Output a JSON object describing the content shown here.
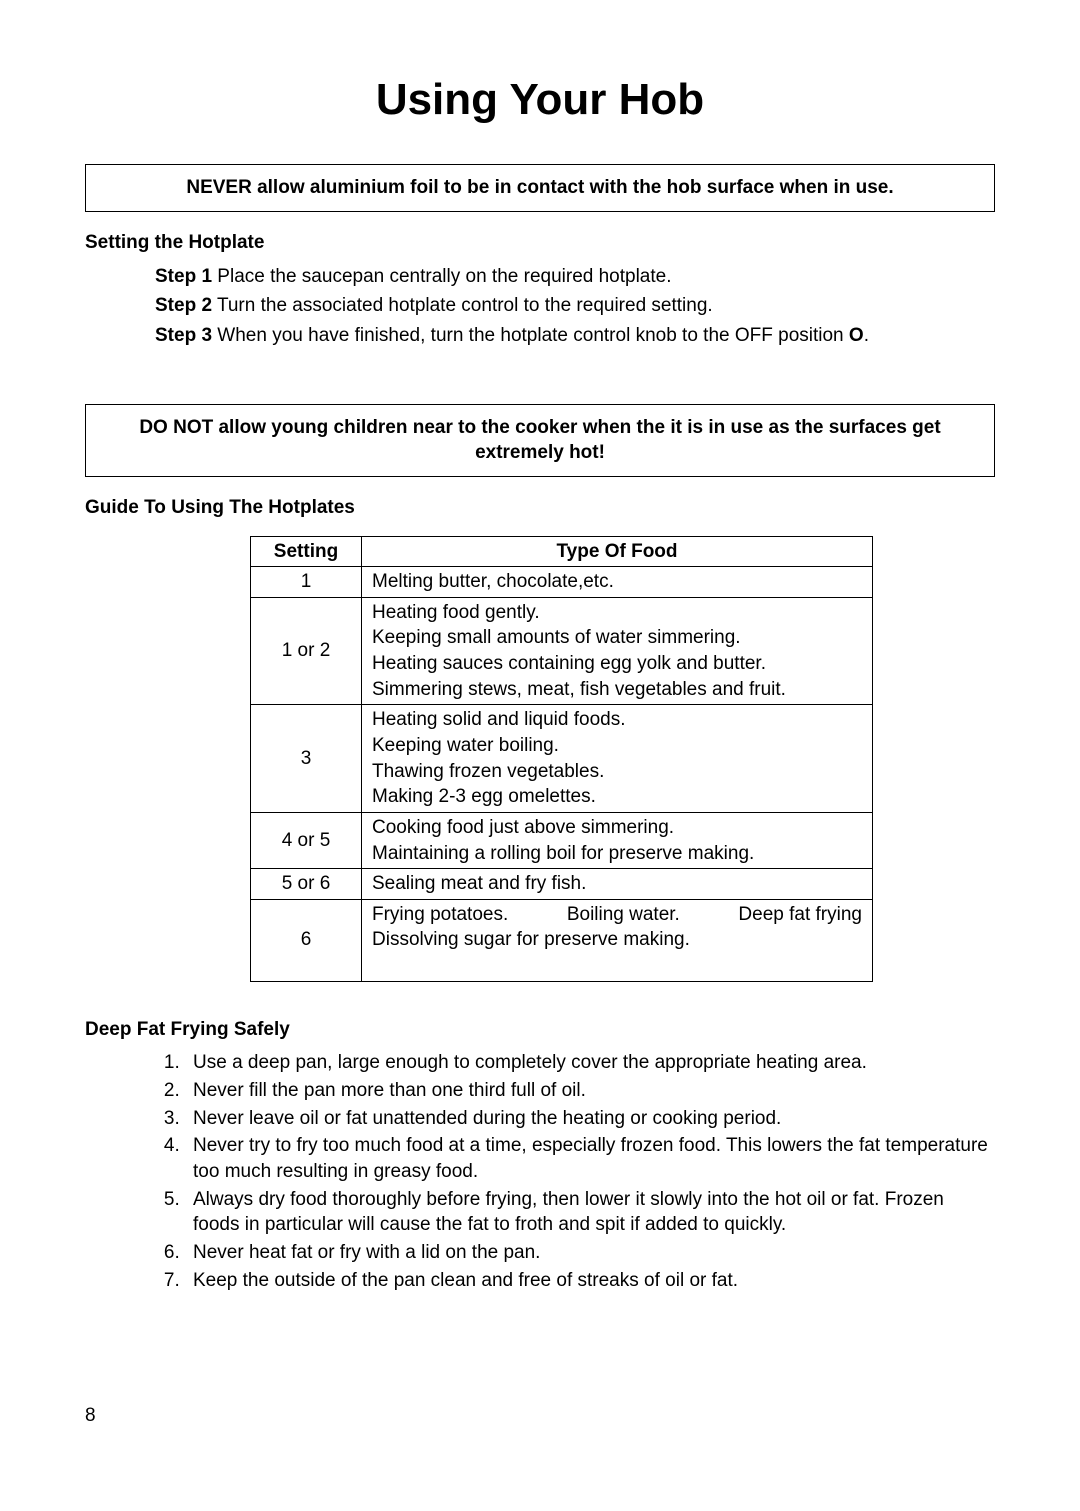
{
  "page": {
    "title": "Using Your Hob",
    "number": "8"
  },
  "warnings": {
    "foil": "NEVER allow aluminium foil to be in contact with the hob surface when in use.",
    "children": "DO NOT allow young children near to the cooker when the it is in use as the surfaces get extremely hot!"
  },
  "hotplate": {
    "heading": "Setting the Hotplate",
    "steps": [
      {
        "label": "Step 1",
        "text": " Place the saucepan centrally on the required hotplate."
      },
      {
        "label": "Step 2",
        "text": " Turn the associated hotplate control to the required setting."
      },
      {
        "label": "Step 3",
        "text_before": " When you have finished, turn the hotplate control knob to the OFF position ",
        "bold_tail": "O",
        "text_after": "."
      }
    ]
  },
  "guide": {
    "heading": "Guide To Using The Hotplates",
    "table": {
      "columns": {
        "setting": "Setting",
        "food": "Type Of Food"
      },
      "rows": [
        {
          "setting": "1",
          "lines": [
            "Melting butter, chocolate,etc."
          ]
        },
        {
          "setting": "1 or 2",
          "lines": [
            "Heating food gently.",
            "Keeping small amounts of water simmering.",
            "Heating sauces containing egg yolk and butter.",
            "Simmering stews, meat, fish vegetables and fruit."
          ]
        },
        {
          "setting": "3",
          "lines": [
            "Heating solid and liquid foods.",
            "Keeping water boiling.",
            "Thawing frozen vegetables.",
            "Making 2-3 egg omelettes."
          ]
        },
        {
          "setting": "4 or 5",
          "lines": [
            "Cooking food just above simmering.",
            "Maintaining a rolling boil for preserve making."
          ]
        },
        {
          "setting": "5 or 6",
          "lines": [
            "Sealing meat and fry fish."
          ]
        },
        {
          "setting": "6",
          "tri": [
            "Frying potatoes.",
            "Boiling water.",
            "Deep fat frying"
          ],
          "lines_after": [
            "Dissolving sugar for preserve making."
          ],
          "trailing_pad": true
        }
      ]
    }
  },
  "safety": {
    "heading": "Deep Fat Frying Safely",
    "items": [
      "Use a deep pan, large enough to completely cover the appropriate heating area.",
      "Never fill the pan more than one third full of oil.",
      "Never leave oil or fat unattended during the heating or cooking period.",
      "Never try to fry too much food at a time, especially frozen food.  This lowers the fat temperature too much resulting in greasy food.",
      "Always dry food thoroughly before frying, then lower it slowly into the hot oil or fat.  Frozen foods in particular will cause the fat to froth and spit if added to quickly.",
      "Never heat fat or fry with a lid on the pan.",
      "Keep the outside of the pan clean and free of streaks of oil or fat."
    ]
  }
}
